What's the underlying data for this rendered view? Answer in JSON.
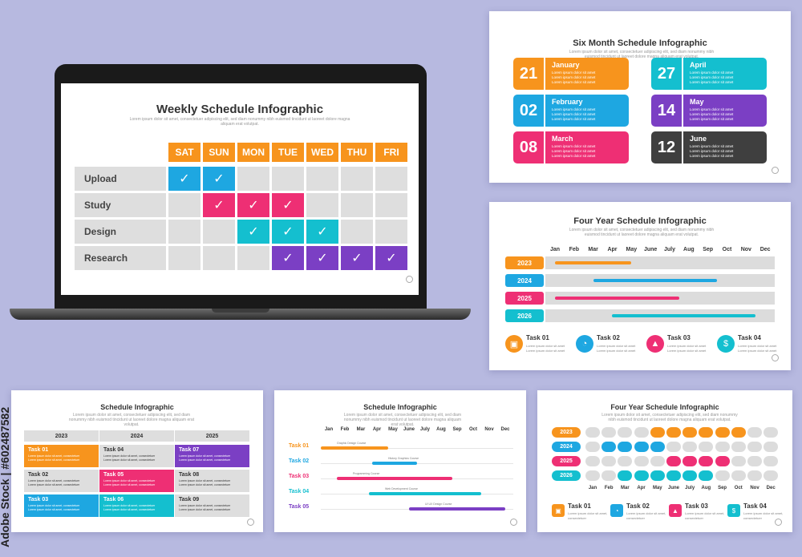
{
  "colors": {
    "orange": "#f7941d",
    "blue": "#1ea7e1",
    "pink": "#ee2f74",
    "cyan": "#14bfcf",
    "purple": "#7b3fc4",
    "dark": "#3f3f3f",
    "grey": "#dedede"
  },
  "lorem": "Lorem ipsum dolor sit amet, consectetuer adipiscing elit, sed diam nonummy nibh euismod tincidunt ut laoreet dolore magna aliquam erat volutpat.",
  "weekly": {
    "title": "Weekly Schedule Infographic",
    "days": [
      "SAT",
      "SUN",
      "MON",
      "TUE",
      "WED",
      "THU",
      "FRI"
    ],
    "rows": [
      {
        "label": "Upload",
        "checks": [
          true,
          true,
          false,
          false,
          false,
          false,
          false
        ],
        "color": "#1ea7e1"
      },
      {
        "label": "Study",
        "checks": [
          false,
          true,
          true,
          true,
          false,
          false,
          false
        ],
        "color": "#ee2f74"
      },
      {
        "label": "Design",
        "checks": [
          false,
          false,
          true,
          true,
          true,
          false,
          false
        ],
        "color": "#14bfcf"
      },
      {
        "label": "Research",
        "checks": [
          false,
          false,
          false,
          true,
          true,
          true,
          true
        ],
        "color": "#7b3fc4"
      }
    ],
    "check_glyph": "✓"
  },
  "six_month": {
    "title": "Six Month Schedule Infographic",
    "items": [
      {
        "num": "21",
        "month": "January",
        "color": "#f7941d"
      },
      {
        "num": "02",
        "month": "February",
        "color": "#1ea7e1"
      },
      {
        "num": "08",
        "month": "March",
        "color": "#ee2f74"
      },
      {
        "num": "27",
        "month": "April",
        "color": "#14bfcf"
      },
      {
        "num": "14",
        "month": "May",
        "color": "#7b3fc4"
      },
      {
        "num": "12",
        "month": "June",
        "color": "#3f3f3f"
      }
    ],
    "bullet": "Lorem ipsum dolor sit amet"
  },
  "four_year": {
    "title": "Four Year Schedule Infographic",
    "months": [
      "Jan",
      "Feb",
      "Mar",
      "Apr",
      "May",
      "June",
      "July",
      "Aug",
      "Sep",
      "Oct",
      "Nov",
      "Dec"
    ],
    "years": [
      {
        "label": "2023",
        "color": "#f7941d",
        "start": 0.5,
        "end": 4.5
      },
      {
        "label": "2024",
        "color": "#1ea7e1",
        "start": 2.5,
        "end": 9.0
      },
      {
        "label": "2025",
        "color": "#ee2f74",
        "start": 0.5,
        "end": 7.0
      },
      {
        "label": "2026",
        "color": "#14bfcf",
        "start": 3.5,
        "end": 11.0
      }
    ],
    "tasks": [
      {
        "name": "Task 01",
        "color": "#f7941d",
        "icon": "briefcase-icon",
        "glyph": "▣"
      },
      {
        "name": "Task 02",
        "color": "#1ea7e1",
        "icon": "stopwatch-icon",
        "glyph": "◔"
      },
      {
        "name": "Task 03",
        "color": "#ee2f74",
        "icon": "chart-icon",
        "glyph": "▲"
      },
      {
        "name": "Task 04",
        "color": "#14bfcf",
        "icon": "money-icon",
        "glyph": "$"
      }
    ],
    "task_desc": "Lorem ipsum dolor sit amet"
  },
  "schedule_table": {
    "title": "Schedule Infographic",
    "years": [
      "2023",
      "2024",
      "2025"
    ],
    "cells": [
      {
        "name": "Task 01",
        "color": "#f7941d"
      },
      {
        "name": "Task 04",
        "color": "#dedede"
      },
      {
        "name": "Task 07",
        "color": "#7b3fc4"
      },
      {
        "name": "Task 02",
        "color": "#dedede"
      },
      {
        "name": "Task 05",
        "color": "#ee2f74"
      },
      {
        "name": "Task 08",
        "color": "#dedede"
      },
      {
        "name": "Task 03",
        "color": "#1ea7e1"
      },
      {
        "name": "Task 06",
        "color": "#14bfcf"
      },
      {
        "name": "Task 09",
        "color": "#dedede"
      }
    ],
    "cell_desc": "Lorem ipsum dolor sit amet, consectetuer"
  },
  "schedule_gantt": {
    "title": "Schedule Infographic",
    "months": [
      "Jan",
      "Feb",
      "Mar",
      "Apr",
      "May",
      "June",
      "July",
      "Aug",
      "Sep",
      "Oct",
      "Nov",
      "Dec"
    ],
    "tasks": [
      {
        "name": "Task 01",
        "label": "Graphic Design Course",
        "color": "#f7941d",
        "start": 0.0,
        "end": 4.2
      },
      {
        "name": "Task 02",
        "label": "History Graphics Course",
        "color": "#1ea7e1",
        "start": 3.2,
        "end": 6.0
      },
      {
        "name": "Task 03",
        "label": "Programming Course",
        "color": "#ee2f74",
        "start": 1.0,
        "end": 8.2
      },
      {
        "name": "Task 04",
        "label": "Web Development Course",
        "color": "#14bfcf",
        "start": 3.0,
        "end": 10.0
      },
      {
        "name": "Task 05",
        "label": "UI UX Design Course",
        "color": "#7b3fc4",
        "start": 5.5,
        "end": 11.5
      }
    ]
  },
  "four_year_pills": {
    "title": "Four Year Schedule Infographic",
    "months": [
      "Jan",
      "Feb",
      "Mar",
      "Apr",
      "May",
      "June",
      "July",
      "Aug",
      "Sep",
      "Oct",
      "Nov",
      "Dec"
    ],
    "years": [
      {
        "label": "2023",
        "color": "#f7941d",
        "filled": [
          false,
          false,
          false,
          false,
          true,
          true,
          true,
          true,
          true,
          true,
          false,
          false
        ]
      },
      {
        "label": "2024",
        "color": "#1ea7e1",
        "filled": [
          false,
          true,
          true,
          true,
          true,
          false,
          false,
          false,
          false,
          false,
          false,
          false
        ]
      },
      {
        "label": "2025",
        "color": "#ee2f74",
        "filled": [
          false,
          false,
          false,
          false,
          false,
          true,
          true,
          true,
          true,
          false,
          false,
          false
        ]
      },
      {
        "label": "2026",
        "color": "#14bfcf",
        "filled": [
          false,
          false,
          true,
          true,
          true,
          true,
          true,
          true,
          false,
          false,
          false,
          false
        ]
      }
    ],
    "tasks": [
      {
        "name": "Task 01",
        "color": "#f7941d",
        "icon": "briefcase-icon",
        "glyph": "▣"
      },
      {
        "name": "Task 02",
        "color": "#1ea7e1",
        "icon": "stopwatch-icon",
        "glyph": "◔"
      },
      {
        "name": "Task 03",
        "color": "#ee2f74",
        "icon": "chart-icon",
        "glyph": "▲"
      },
      {
        "name": "Task 04",
        "color": "#14bfcf",
        "icon": "money-icon",
        "glyph": "$"
      }
    ],
    "task_desc": "Lorem ipsum dolor sit amet, consectetuer"
  },
  "watermark": "Adobe Stock | #602487582"
}
